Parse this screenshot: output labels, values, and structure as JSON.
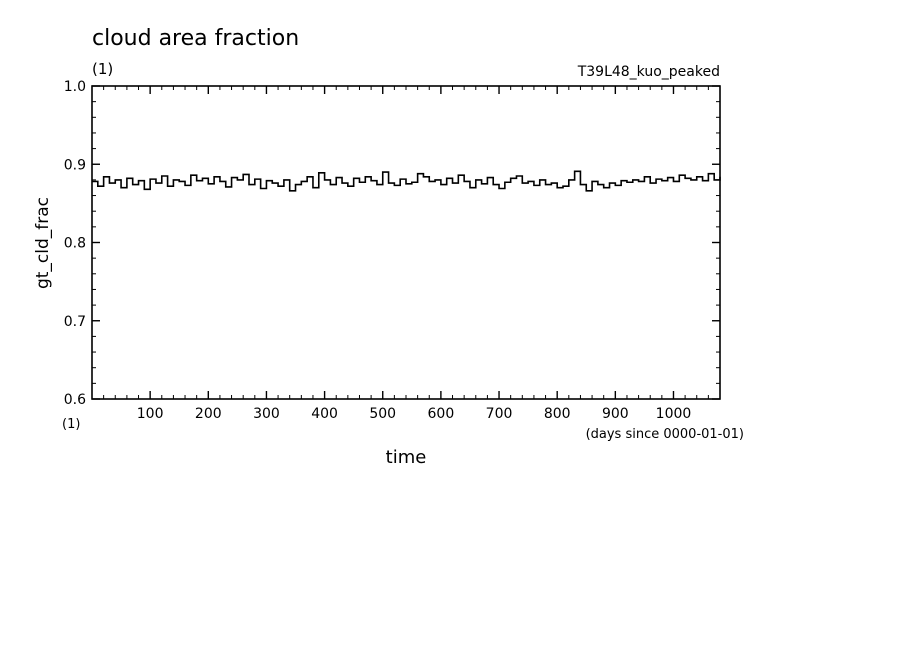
{
  "title": "cloud area fraction",
  "title_units": "(1)",
  "run_label": "T39L48_kuo_peaked",
  "chart_data": {
    "type": "line",
    "title": "cloud area fraction",
    "ylabel": "gt_cld_frac",
    "y_units": "(1)",
    "xlabel": "time",
    "x_units": "(days since 0000-01-01)",
    "xlim": [
      0,
      1080
    ],
    "ylim": [
      0.6,
      1.0
    ],
    "x_ticks": [
      100,
      200,
      300,
      400,
      500,
      600,
      700,
      800,
      900,
      1000
    ],
    "y_ticks": [
      0.6,
      0.7,
      0.8,
      0.9,
      1.0
    ],
    "y_tick_labels": [
      "0.6",
      "0.7",
      "0.8",
      "0.9",
      "1.0"
    ],
    "grid": false,
    "legend": "none",
    "line_color": "#000000",
    "series": [
      {
        "x": [
          0,
          10,
          20,
          30,
          40,
          50,
          60,
          70,
          80,
          90,
          100,
          110,
          120,
          130,
          140,
          150,
          160,
          170,
          180,
          190,
          200,
          210,
          220,
          230,
          240,
          250,
          260,
          270,
          280,
          290,
          300,
          310,
          320,
          330,
          340,
          350,
          360,
          370,
          380,
          390,
          400,
          410,
          420,
          430,
          440,
          450,
          460,
          470,
          480,
          490,
          500,
          510,
          520,
          530,
          540,
          550,
          560,
          570,
          580,
          590,
          600,
          610,
          620,
          630,
          640,
          650,
          660,
          670,
          680,
          690,
          700,
          710,
          720,
          730,
          740,
          750,
          760,
          770,
          780,
          790,
          800,
          810,
          820,
          830,
          840,
          850,
          860,
          870,
          880,
          890,
          900,
          910,
          920,
          930,
          940,
          950,
          960,
          970,
          980,
          990,
          1000,
          1010,
          1020,
          1030,
          1040,
          1050,
          1060,
          1070,
          1080
        ],
        "y": [
          0.878,
          0.872,
          0.884,
          0.876,
          0.88,
          0.87,
          0.882,
          0.874,
          0.879,
          0.868,
          0.881,
          0.876,
          0.885,
          0.872,
          0.88,
          0.878,
          0.873,
          0.886,
          0.879,
          0.882,
          0.875,
          0.884,
          0.878,
          0.871,
          0.883,
          0.88,
          0.887,
          0.874,
          0.881,
          0.869,
          0.879,
          0.876,
          0.872,
          0.88,
          0.866,
          0.874,
          0.878,
          0.884,
          0.87,
          0.889,
          0.88,
          0.874,
          0.883,
          0.876,
          0.872,
          0.882,
          0.877,
          0.884,
          0.879,
          0.874,
          0.89,
          0.876,
          0.873,
          0.881,
          0.875,
          0.877,
          0.888,
          0.884,
          0.878,
          0.88,
          0.874,
          0.882,
          0.876,
          0.886,
          0.878,
          0.87,
          0.88,
          0.875,
          0.883,
          0.874,
          0.869,
          0.877,
          0.882,
          0.885,
          0.876,
          0.878,
          0.873,
          0.88,
          0.874,
          0.876,
          0.87,
          0.872,
          0.88,
          0.891,
          0.874,
          0.866,
          0.878,
          0.874,
          0.87,
          0.876,
          0.873,
          0.879,
          0.877,
          0.88,
          0.878,
          0.884,
          0.876,
          0.881,
          0.879,
          0.883,
          0.878,
          0.886,
          0.882,
          0.88,
          0.884,
          0.879,
          0.888,
          0.88,
          0.884
        ]
      }
    ]
  }
}
